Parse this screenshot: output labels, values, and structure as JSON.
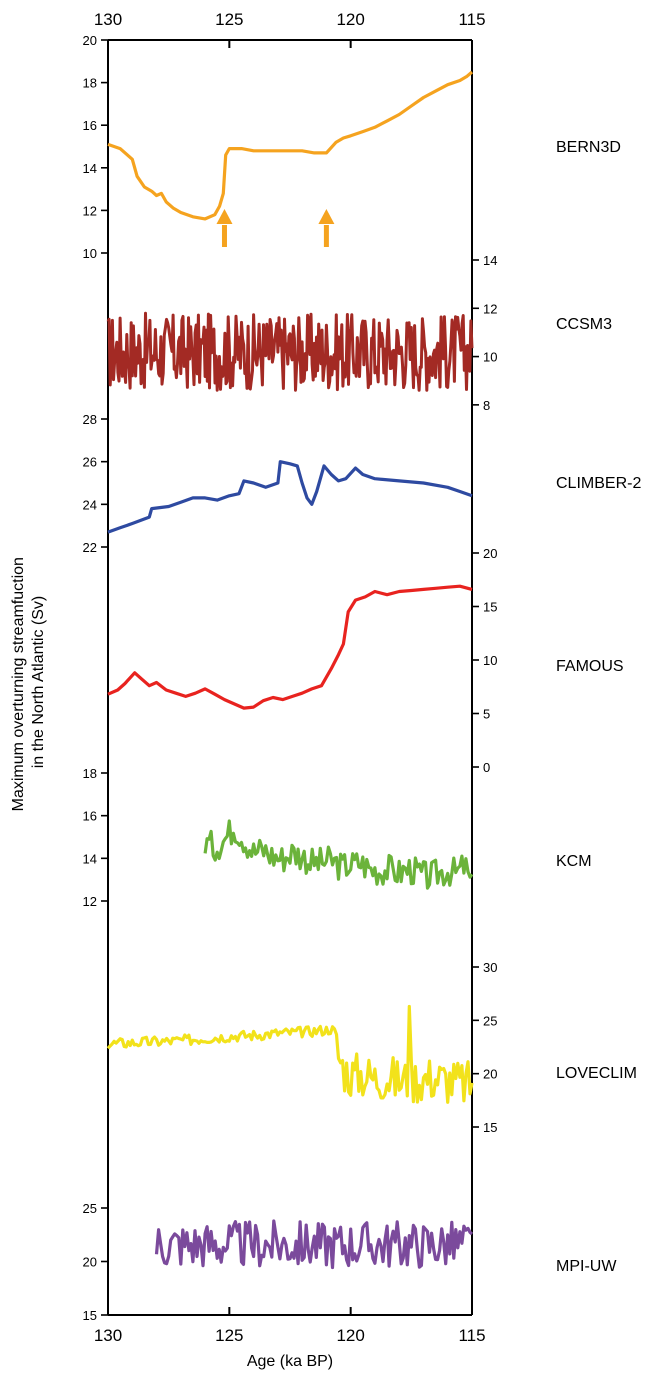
{
  "chart_data": {
    "type": "line",
    "x_axis": {
      "label": "Age (ka BP)",
      "range": [
        130,
        115
      ],
      "reversed": true,
      "ticks": [
        130,
        125,
        120,
        115
      ]
    },
    "y_label": "Maximum overturning streamfuction in the North Atlantic (Sv)",
    "y_label_line1": "Maximum overturning streamfuction",
    "y_label_line2": "in the North Atlantic (Sv)",
    "panels": [
      {
        "name": "BERN3D",
        "color": "#f5a31f",
        "axis_side": "left",
        "yrange": [
          10,
          20
        ],
        "ticks": [
          10,
          12,
          14,
          16,
          18,
          20
        ],
        "arrows_at": [
          125.2,
          121.0
        ],
        "points": [
          [
            130,
            15.1
          ],
          [
            129.5,
            14.9
          ],
          [
            129.0,
            14.4
          ],
          [
            128.8,
            13.6
          ],
          [
            128.5,
            13.1
          ],
          [
            128.2,
            12.9
          ],
          [
            128.0,
            12.7
          ],
          [
            127.8,
            12.8
          ],
          [
            127.6,
            12.4
          ],
          [
            127.3,
            12.1
          ],
          [
            127.0,
            11.9
          ],
          [
            126.5,
            11.7
          ],
          [
            126.0,
            11.6
          ],
          [
            125.6,
            11.8
          ],
          [
            125.4,
            12.2
          ],
          [
            125.25,
            12.8
          ],
          [
            125.15,
            14.6
          ],
          [
            125.0,
            14.9
          ],
          [
            124.5,
            14.9
          ],
          [
            124.0,
            14.8
          ],
          [
            123.0,
            14.8
          ],
          [
            122.0,
            14.8
          ],
          [
            121.5,
            14.7
          ],
          [
            121.0,
            14.7
          ],
          [
            120.6,
            15.2
          ],
          [
            120.3,
            15.4
          ],
          [
            120.0,
            15.5
          ],
          [
            119.5,
            15.7
          ],
          [
            119.0,
            15.9
          ],
          [
            118.5,
            16.2
          ],
          [
            118.0,
            16.5
          ],
          [
            117.5,
            16.9
          ],
          [
            117.0,
            17.3
          ],
          [
            116.5,
            17.6
          ],
          [
            116.0,
            17.9
          ],
          [
            115.5,
            18.1
          ],
          [
            115.2,
            18.3
          ],
          [
            115.0,
            18.5
          ]
        ]
      },
      {
        "name": "CCSM3",
        "color": "#a32a24",
        "axis_side": "right",
        "yrange": [
          7,
          14
        ],
        "ticks": [
          8,
          10,
          12,
          14
        ],
        "mean": 10.2,
        "amplitude": 1.6,
        "x_start": 130,
        "x_end": 115
      },
      {
        "name": "CLIMBER-2",
        "color": "#2e4aa1",
        "axis_side": "left",
        "yrange": [
          22,
          28
        ],
        "ticks": [
          22,
          24,
          26,
          28
        ],
        "points": [
          [
            130,
            22.7
          ],
          [
            129.5,
            22.9
          ],
          [
            129,
            23.1
          ],
          [
            128.3,
            23.4
          ],
          [
            128.2,
            23.8
          ],
          [
            127.5,
            23.9
          ],
          [
            127,
            24.1
          ],
          [
            126.5,
            24.3
          ],
          [
            126,
            24.3
          ],
          [
            125.5,
            24.2
          ],
          [
            125,
            24.4
          ],
          [
            124.6,
            24.5
          ],
          [
            124.4,
            25.1
          ],
          [
            124,
            25.0
          ],
          [
            123.5,
            24.8
          ],
          [
            123,
            25.0
          ],
          [
            122.9,
            26.0
          ],
          [
            122.5,
            25.9
          ],
          [
            122.2,
            25.8
          ],
          [
            122,
            25.0
          ],
          [
            121.8,
            24.3
          ],
          [
            121.6,
            24.0
          ],
          [
            121.4,
            24.6
          ],
          [
            121.1,
            25.8
          ],
          [
            120.8,
            25.4
          ],
          [
            120.5,
            25.1
          ],
          [
            120.2,
            25.2
          ],
          [
            119.8,
            25.7
          ],
          [
            119.5,
            25.4
          ],
          [
            119,
            25.2
          ],
          [
            118,
            25.1
          ],
          [
            117,
            25.0
          ],
          [
            116,
            24.8
          ],
          [
            115.5,
            24.6
          ],
          [
            115,
            24.4
          ]
        ]
      },
      {
        "name": "FAMOUS",
        "color": "#e8231f",
        "axis_side": "right",
        "yrange": [
          0,
          20
        ],
        "ticks": [
          0,
          5,
          10,
          15,
          20
        ],
        "points": [
          [
            130,
            6.8
          ],
          [
            129.6,
            7.2
          ],
          [
            129.3,
            7.8
          ],
          [
            128.9,
            8.8
          ],
          [
            128.6,
            8.2
          ],
          [
            128.3,
            7.6
          ],
          [
            128,
            7.9
          ],
          [
            127.6,
            7.2
          ],
          [
            127.2,
            6.9
          ],
          [
            126.8,
            6.6
          ],
          [
            126.4,
            6.9
          ],
          [
            126,
            7.3
          ],
          [
            125.6,
            6.8
          ],
          [
            125.2,
            6.3
          ],
          [
            124.8,
            5.9
          ],
          [
            124.4,
            5.5
          ],
          [
            124,
            5.6
          ],
          [
            123.6,
            6.2
          ],
          [
            123.2,
            6.5
          ],
          [
            122.8,
            6.3
          ],
          [
            122.4,
            6.6
          ],
          [
            122,
            6.9
          ],
          [
            121.6,
            7.3
          ],
          [
            121.2,
            7.6
          ],
          [
            120.8,
            9.2
          ],
          [
            120.5,
            10.5
          ],
          [
            120.3,
            11.5
          ],
          [
            120.1,
            14.5
          ],
          [
            119.8,
            15.6
          ],
          [
            119.4,
            15.9
          ],
          [
            119,
            16.4
          ],
          [
            118.5,
            16.1
          ],
          [
            118,
            16.4
          ],
          [
            117.5,
            16.5
          ],
          [
            117,
            16.6
          ],
          [
            116.5,
            16.7
          ],
          [
            116,
            16.8
          ],
          [
            115.5,
            16.9
          ],
          [
            115,
            16.6
          ]
        ]
      },
      {
        "name": "KCM",
        "color": "#6bb33a",
        "axis_side": "left",
        "yrange": [
          12,
          18
        ],
        "ticks": [
          12,
          14,
          16,
          18
        ],
        "points": [
          [
            126,
            14.8
          ],
          [
            125.6,
            14.5
          ],
          [
            125.2,
            14.9
          ],
          [
            124.8,
            15.5
          ],
          [
            124.4,
            14.9
          ],
          [
            124,
            14.3
          ],
          [
            123.6,
            14.4
          ],
          [
            123.2,
            14.1
          ],
          [
            122.8,
            14.0
          ],
          [
            122.4,
            14.3
          ],
          [
            122,
            14.1
          ],
          [
            121.6,
            13.8
          ],
          [
            121.2,
            13.8
          ],
          [
            120.8,
            13.9
          ],
          [
            120.4,
            13.6
          ],
          [
            120,
            13.7
          ],
          [
            119.6,
            13.8
          ],
          [
            119.2,
            13.5
          ],
          [
            118.8,
            13.4
          ],
          [
            118.4,
            13.5
          ],
          [
            118,
            13.3
          ],
          [
            117.6,
            13.5
          ],
          [
            117.2,
            13.3
          ],
          [
            116.8,
            13.1
          ],
          [
            116.4,
            13.3
          ],
          [
            116,
            13.4
          ],
          [
            115.6,
            13.3
          ],
          [
            115.3,
            13.7
          ],
          [
            115,
            12.6
          ]
        ],
        "amplitude": 0.7
      },
      {
        "name": "LOVECLIM",
        "color": "#f2e21b",
        "axis_side": "right",
        "yrange": [
          15,
          30
        ],
        "ticks": [
          15,
          20,
          25,
          30
        ],
        "points": [
          [
            130,
            22.8
          ],
          [
            129,
            22.9
          ],
          [
            128,
            23.0
          ],
          [
            127,
            23.1
          ],
          [
            126,
            23.3
          ],
          [
            125,
            23.5
          ],
          [
            124,
            23.6
          ],
          [
            123,
            23.8
          ],
          [
            122,
            23.9
          ],
          [
            121,
            24.1
          ],
          [
            120.8,
            24.2
          ],
          [
            120.6,
            23.8
          ],
          [
            120.5,
            21.5
          ],
          [
            120.3,
            20.5
          ],
          [
            120,
            19.8
          ],
          [
            119.5,
            19.9
          ],
          [
            119,
            19.5
          ],
          [
            118.5,
            19.7
          ],
          [
            118,
            19.3
          ],
          [
            117.6,
            19.4
          ],
          [
            117,
            19.5
          ],
          [
            116.5,
            19.6
          ],
          [
            116,
            19.3
          ],
          [
            115.5,
            19.1
          ],
          [
            115,
            19.0
          ]
        ],
        "spike_at": 117.6,
        "spike_value": 26.3,
        "amplitude": 0.5,
        "amplitude_after": 2.2,
        "switch_at": 120.5
      },
      {
        "name": "MPI-UW",
        "color": "#7b4a9c",
        "axis_side": "left",
        "yrange": [
          15,
          25
        ],
        "ticks": [
          15,
          20,
          25
        ],
        "mean": 21.6,
        "amplitude": 2.2,
        "x_start": 128,
        "x_end": 115
      }
    ]
  }
}
